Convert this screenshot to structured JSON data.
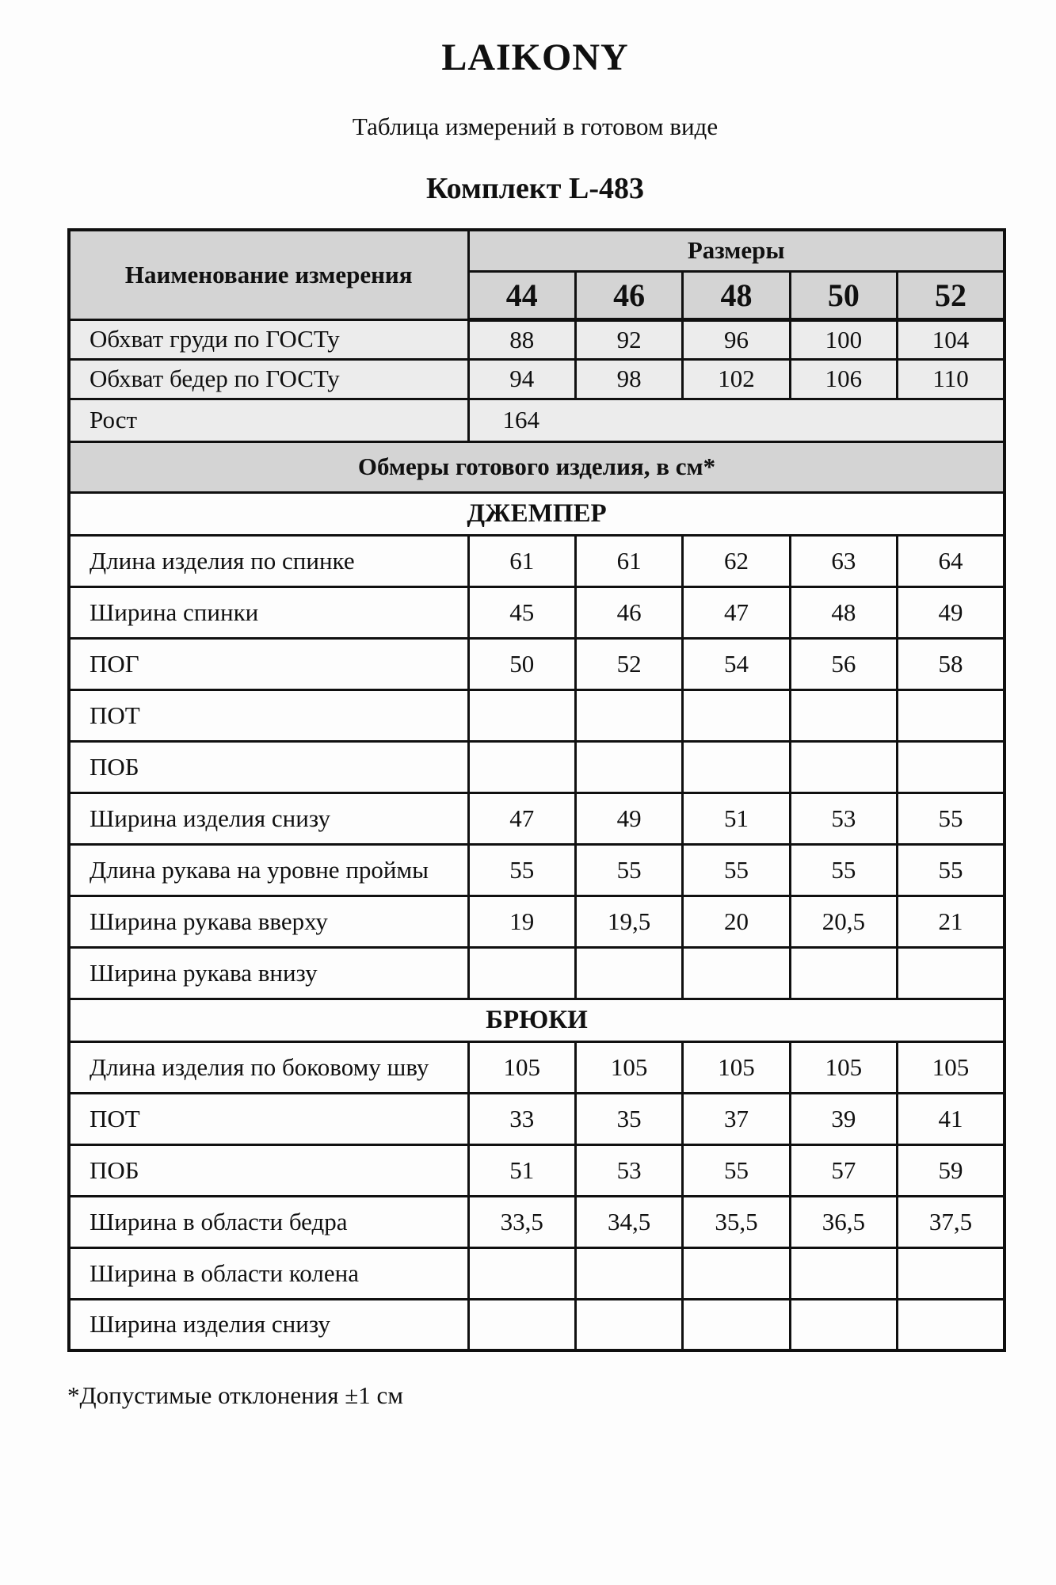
{
  "page": {
    "brand": "LAIKONY",
    "subtitle": "Таблица измерений в готовом виде",
    "product_title": "Комплект L-483",
    "footnote": "*Допустимые отклонения ±1 см"
  },
  "colors": {
    "header_bg": "#d4d4d4",
    "row_tint_bg": "#ececec",
    "page_bg": "#fdfdfd",
    "border": "#101010"
  },
  "table": {
    "name_header": "Наименование измерения",
    "sizes_header": "Размеры",
    "sizes": [
      "44",
      "46",
      "48",
      "50",
      "52"
    ],
    "gost_rows": [
      {
        "label": "Обхват груди по ГОСТу",
        "values": [
          "88",
          "92",
          "96",
          "100",
          "104"
        ]
      },
      {
        "label": "Обхват бедер по ГОСТу",
        "values": [
          "94",
          "98",
          "102",
          "106",
          "110"
        ]
      }
    ],
    "height_row": {
      "label": "Рост",
      "value": "164"
    },
    "section_note": "Обмеры готового изделия, в см*",
    "sections": [
      {
        "title": "ДЖЕМПЕР",
        "rows": [
          {
            "label": "Длина изделия по спинке",
            "values": [
              "61",
              "61",
              "62",
              "63",
              "64"
            ]
          },
          {
            "label": "Ширина спинки",
            "values": [
              "45",
              "46",
              "47",
              "48",
              "49"
            ]
          },
          {
            "label": "ПОГ",
            "values": [
              "50",
              "52",
              "54",
              "56",
              "58"
            ]
          },
          {
            "label": "ПОТ",
            "values": [
              "",
              "",
              "",
              "",
              ""
            ]
          },
          {
            "label": "ПОБ",
            "values": [
              "",
              "",
              "",
              "",
              ""
            ]
          },
          {
            "label": "Ширина изделия снизу",
            "values": [
              "47",
              "49",
              "51",
              "53",
              "55"
            ]
          },
          {
            "label": "Длина рукава на уровне проймы",
            "values": [
              "55",
              "55",
              "55",
              "55",
              "55"
            ]
          },
          {
            "label": "Ширина рукава вверху",
            "values": [
              "19",
              "19,5",
              "20",
              "20,5",
              "21"
            ]
          },
          {
            "label": "Ширина рукава внизу",
            "values": [
              "",
              "",
              "",
              "",
              ""
            ]
          }
        ]
      },
      {
        "title": "БРЮКИ",
        "rows": [
          {
            "label": "Длина изделия по боковому шву",
            "values": [
              "105",
              "105",
              "105",
              "105",
              "105"
            ]
          },
          {
            "label": "ПОТ",
            "values": [
              "33",
              "35",
              "37",
              "39",
              "41"
            ]
          },
          {
            "label": "ПОБ",
            "values": [
              "51",
              "53",
              "55",
              "57",
              "59"
            ]
          },
          {
            "label": "Ширина в области бедра",
            "values": [
              "33,5",
              "34,5",
              "35,5",
              "36,5",
              "37,5"
            ]
          },
          {
            "label": "Ширина в области колена",
            "values": [
              "",
              "",
              "",
              "",
              ""
            ]
          },
          {
            "label": "Ширина изделия снизу",
            "values": [
              "",
              "",
              "",
              "",
              ""
            ]
          }
        ]
      }
    ]
  }
}
